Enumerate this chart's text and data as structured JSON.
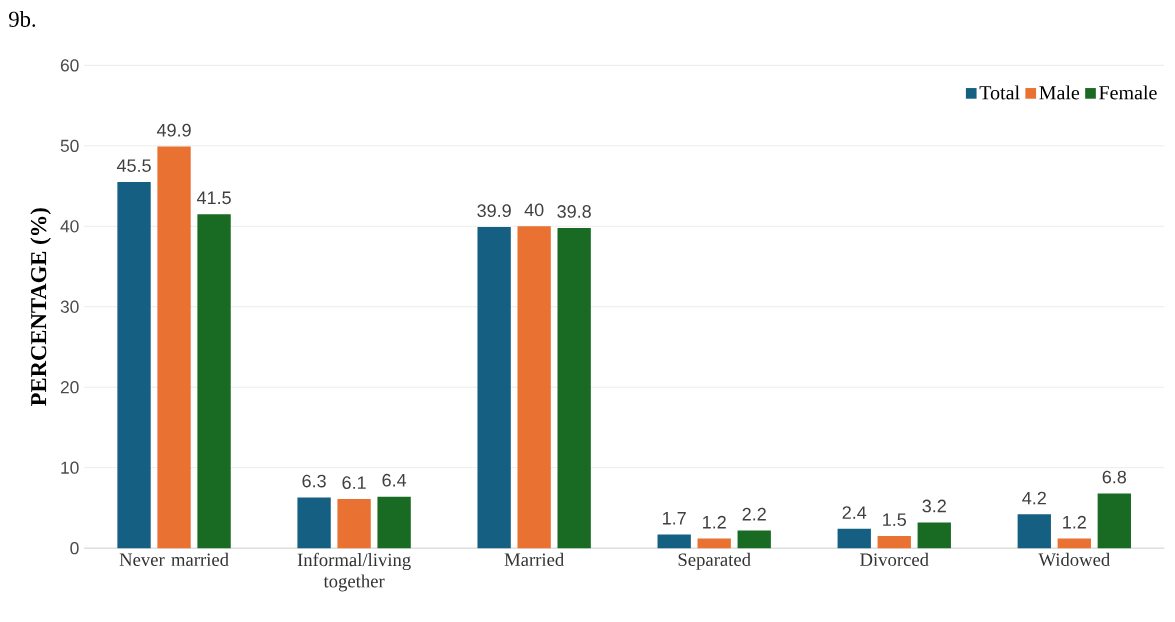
{
  "chart_data": {
    "type": "bar",
    "title": "9b.",
    "ylabel": "PERCENTAGE (%)",
    "categories": [
      "Never married",
      "Informal/living together",
      "Married",
      "Separated",
      "Divorced",
      "Widowed"
    ],
    "series": [
      {
        "name": "Total",
        "color": "#156082",
        "values": [
          45.5,
          6.3,
          39.9,
          1.7,
          2.4,
          4.2
        ]
      },
      {
        "name": "Male",
        "color": "#e97132",
        "values": [
          49.9,
          6.1,
          40,
          1.2,
          1.5,
          1.2
        ]
      },
      {
        "name": "Female",
        "color": "#196b24",
        "values": [
          41.5,
          6.4,
          39.8,
          2.2,
          3.2,
          6.8
        ]
      }
    ],
    "ylim": [
      0,
      60
    ],
    "yticks": [
      0,
      10,
      20,
      30,
      40,
      50,
      60
    ],
    "grid": "y",
    "legend": "top right",
    "data_labels": true
  }
}
